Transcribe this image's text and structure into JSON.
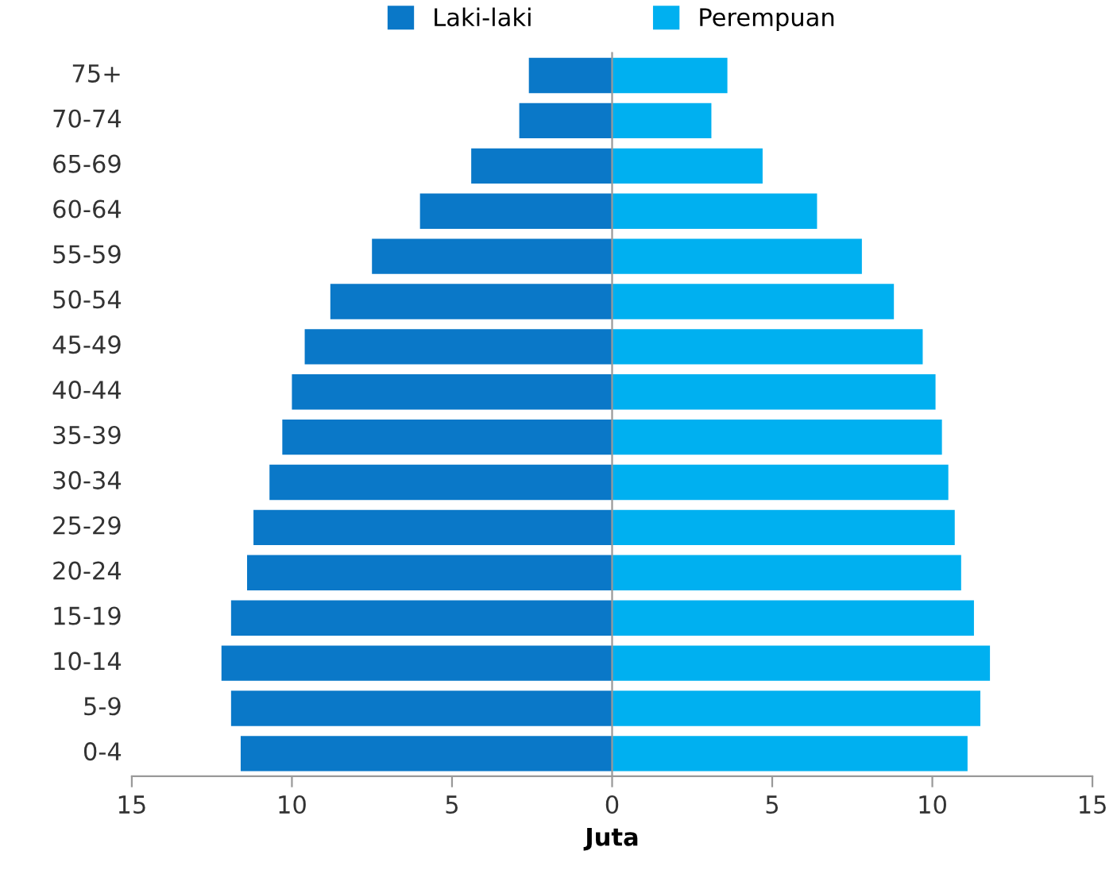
{
  "chart_data": {
    "type": "bar",
    "orientation": "horizontal",
    "xlabel": "Juta",
    "categories": [
      "75+",
      "70-74",
      "65-69",
      "60-64",
      "55-59",
      "50-54",
      "45-49",
      "40-44",
      "35-39",
      "30-34",
      "25-29",
      "20-24",
      "15-19",
      "10-14",
      "5-9",
      "0-4"
    ],
    "series": [
      {
        "name": "Laki-laki",
        "color": "#0a78c8",
        "values": [
          -2.6,
          -2.9,
          -4.4,
          -6.0,
          -7.5,
          -8.8,
          -9.6,
          -10.0,
          -10.3,
          -10.7,
          -11.2,
          -11.4,
          -11.9,
          -12.2,
          -11.9,
          -11.6
        ]
      },
      {
        "name": "Perempuan",
        "color": "#00b0f0",
        "values": [
          3.6,
          3.1,
          4.7,
          6.4,
          7.8,
          8.8,
          9.7,
          10.1,
          10.3,
          10.5,
          10.7,
          10.9,
          11.3,
          11.8,
          11.5,
          11.1
        ]
      }
    ],
    "xlim": [
      -15,
      15
    ],
    "xticks": [
      {
        "value": -15,
        "label": "15"
      },
      {
        "value": -10,
        "label": "10"
      },
      {
        "value": -5,
        "label": "5"
      },
      0,
      5,
      10,
      15
    ],
    "stacked": true,
    "legend": "top"
  }
}
